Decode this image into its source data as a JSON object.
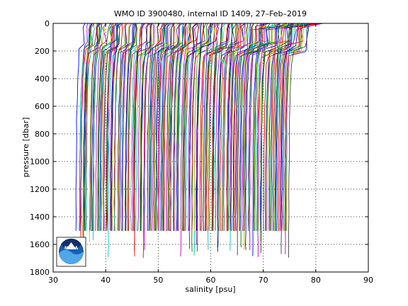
{
  "chart_data": {
    "type": "line",
    "title": "WMO ID 3900480, internal ID 1409, 27–Feb–2019",
    "xlabel": "salinity [psu]",
    "ylabel": "pressure [dbar]",
    "xlim": [
      30,
      90
    ],
    "ylim": [
      1800,
      0
    ],
    "y_reversed": true,
    "xticks": [
      30,
      40,
      50,
      60,
      70,
      80,
      90
    ],
    "yticks": [
      0,
      200,
      400,
      600,
      800,
      1000,
      1200,
      1400,
      1600,
      1800
    ],
    "grid": true,
    "profile_count": 210,
    "first_profile_salinity_at_depth": 34.6,
    "last_profile_salinity_at_depth": 74.8,
    "surface_layer_depth": 170,
    "main_profile_bottom_pressure": 1500,
    "deepest_profile_pressure": 1700,
    "max_surface_salinity": 82.0,
    "series_colors": [
      "#0000ff",
      "#008000",
      "#ff0000",
      "#00bfbf",
      "#bf00bf",
      "#bfbf00",
      "#404040"
    ]
  },
  "logo": {
    "text": "NOAA"
  }
}
